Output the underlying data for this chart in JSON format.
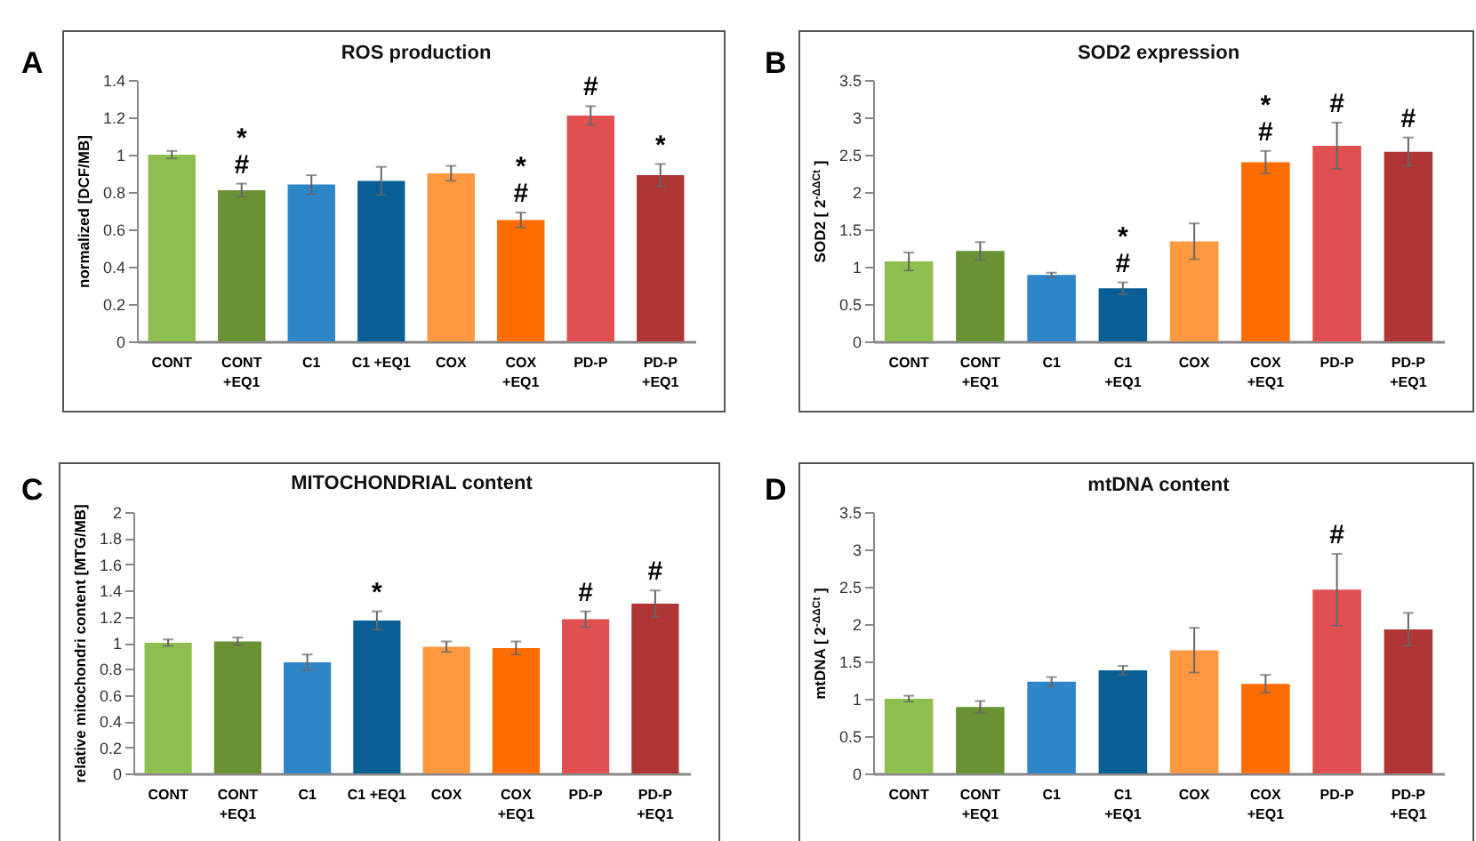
{
  "chart_data": [
    {
      "type": "bar",
      "title": "ROS production",
      "ylabel": "normalized  [DCF/MB]",
      "categories": [
        "CONT",
        "CONT\n+EQ1",
        "C1",
        "C1  +EQ1",
        "COX",
        "COX\n+EQ1",
        "PD-P",
        "PD-P\n+EQ1"
      ],
      "values": [
        1.0,
        0.81,
        0.84,
        0.86,
        0.9,
        0.65,
        1.21,
        0.89
      ],
      "errors": [
        0.02,
        0.035,
        0.05,
        0.075,
        0.04,
        0.04,
        0.05,
        0.06
      ],
      "colors": [
        "#8fbe50",
        "#6a9234",
        "#2e86c8",
        "#0a5f96",
        "#ff9940",
        "#ff6d00",
        "#e05050",
        "#b03535"
      ],
      "ylim": [
        0,
        1.4
      ],
      "yticks": [
        0,
        0.2,
        0.4,
        0.6,
        0.8,
        1,
        1.2,
        1.4
      ],
      "annotations": [
        "A",
        {
          "text": "#",
          "x": "CONT\n+EQ1",
          "y": 0.81
        },
        {
          "text": "*",
          "x": "CONT\n+EQ1",
          "y": 0.81
        },
        {
          "text": "#",
          "x": "COX\n+EQ1",
          "y": 0.65
        },
        {
          "text": "*",
          "x": "COX\n+EQ1",
          "y": 0.65
        },
        {
          "text": "#",
          "x": "PD-P",
          "y": 1.21
        },
        {
          "text": "*",
          "x": "PD-P\n+EQ1",
          "y": 0.89
        }
      ]
    },
    {
      "type": "bar",
      "title": "SOD2 expression",
      "ylabel": "SOD2  [ 2$^{-ΔΔCt}$ ]",
      "categories": [
        "CONT",
        "CONT\n+EQ1",
        "C1",
        "C1\n+EQ1",
        "COX",
        "COX\n+EQ1",
        "PD-P",
        "PD-P\n+EQ1"
      ],
      "values": [
        1.07,
        1.21,
        0.89,
        0.71,
        1.34,
        2.4,
        2.62,
        2.54
      ],
      "errors": [
        0.12,
        0.12,
        0.03,
        0.08,
        0.24,
        0.15,
        0.31,
        0.19
      ],
      "colors": [
        "#8fbe50",
        "#6a9234",
        "#2e86c8",
        "#0a5f96",
        "#ff9940",
        "#ff6d00",
        "#e05050",
        "#b03535"
      ],
      "ylim": [
        0,
        3.5
      ],
      "yticks": [
        0,
        0.5,
        1,
        1.5,
        2,
        2.5,
        3,
        3.5
      ],
      "annotations": [
        "B",
        {
          "text": "#",
          "x": "C1\n+EQ1",
          "y": 0.71
        },
        {
          "text": "*",
          "x": "C1\n+EQ1",
          "y": 0.71
        },
        {
          "text": "#",
          "x": "COX\n+EQ1",
          "y": 2.4
        },
        {
          "text": "*",
          "x": "COX\n+EQ1",
          "y": 2.4
        },
        {
          "text": "#",
          "x": "PD-P",
          "y": 2.62
        },
        {
          "text": "#",
          "x": "PD-P\n+EQ1",
          "y": 2.54
        }
      ]
    },
    {
      "type": "bar",
      "title": "MITOCHONDRIAL content",
      "ylabel": "relative mitochondri content [MTG/MB]",
      "categories": [
        "CONT",
        "CONT\n+EQ1",
        "C1",
        "C1  +EQ1",
        "COX",
        "COX\n+EQ1",
        "PD-P",
        "PD-P\n+EQ1"
      ],
      "values": [
        1.0,
        1.01,
        0.85,
        1.17,
        0.97,
        0.96,
        1.18,
        1.3
      ],
      "errors": [
        0.025,
        0.03,
        0.06,
        0.07,
        0.04,
        0.05,
        0.06,
        0.1
      ],
      "colors": [
        "#8fbe50",
        "#6a9234",
        "#2e86c8",
        "#0a5f96",
        "#ff9940",
        "#ff6d00",
        "#e05050",
        "#b03535"
      ],
      "ylim": [
        0,
        2
      ],
      "yticks": [
        0,
        0.2,
        0.4,
        0.6,
        0.8,
        1,
        1.2,
        1.4,
        1.6,
        1.8,
        2
      ],
      "annotations": [
        "C",
        {
          "text": "*",
          "x": "C1  +EQ1",
          "y": 1.17
        },
        {
          "text": "#",
          "x": "PD-P",
          "y": 1.18
        },
        {
          "text": "#",
          "x": "PD-P\n+EQ1",
          "y": 1.3
        }
      ]
    },
    {
      "type": "bar",
      "title": "mtDNA content",
      "ylabel": "mtDNA  [ 2$^{-ΔΔCt}$ ]",
      "categories": [
        "CONT",
        "CONT\n+EQ1",
        "C1",
        "C1\n+EQ1",
        "COX",
        "COX\n+EQ1",
        "PD-P",
        "PD-P\n+EQ1"
      ],
      "values": [
        1.0,
        0.89,
        1.23,
        1.38,
        1.65,
        1.2,
        2.46,
        1.93
      ],
      "errors": [
        0.04,
        0.08,
        0.06,
        0.06,
        0.3,
        0.12,
        0.48,
        0.22
      ],
      "colors": [
        "#8fbe50",
        "#6a9234",
        "#2e86c8",
        "#0a5f96",
        "#ff9940",
        "#ff6d00",
        "#e05050",
        "#b03535"
      ],
      "ylim": [
        0,
        3.5
      ],
      "yticks": [
        0,
        0.5,
        1,
        1.5,
        2,
        2.5,
        3,
        3.5
      ],
      "annotations": [
        "D",
        {
          "text": "#",
          "x": "PD-P",
          "y": 2.46
        }
      ]
    }
  ]
}
